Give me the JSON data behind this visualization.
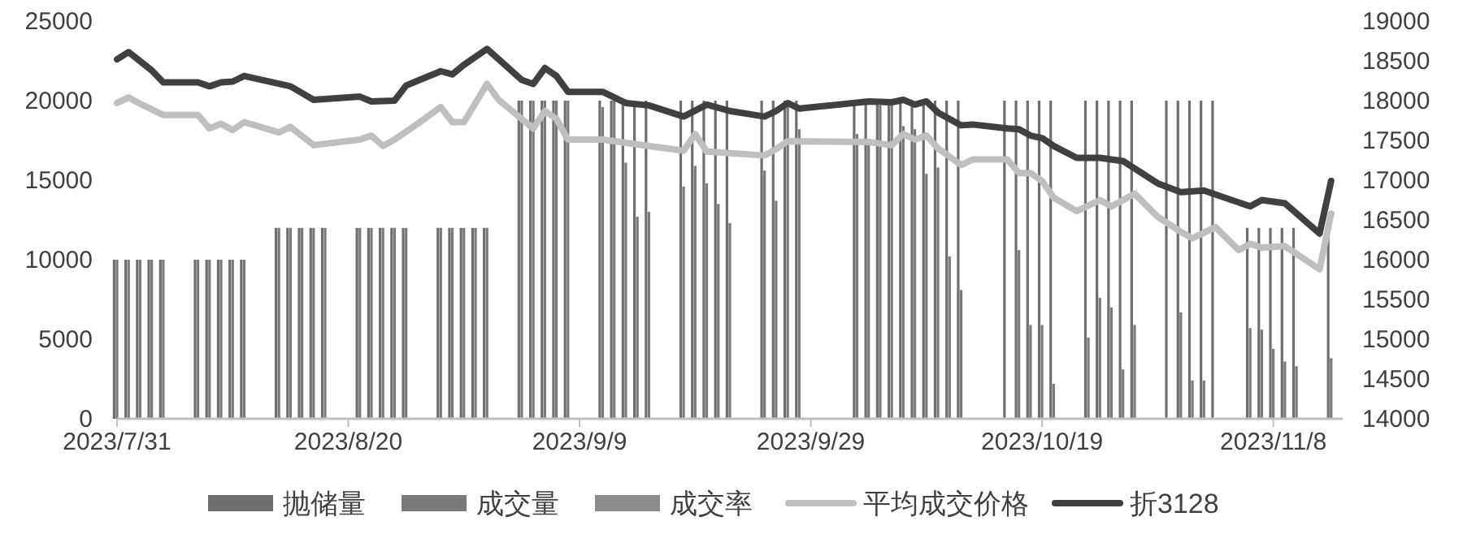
{
  "chart_data": {
    "type": "bar",
    "x": [
      "2023-07-31",
      "2023-08-01",
      "2023-08-02",
      "2023-08-03",
      "2023-08-04",
      "2023-08-07",
      "2023-08-08",
      "2023-08-09",
      "2023-08-10",
      "2023-08-11",
      "2023-08-14",
      "2023-08-15",
      "2023-08-16",
      "2023-08-17",
      "2023-08-18",
      "2023-08-21",
      "2023-08-22",
      "2023-08-23",
      "2023-08-24",
      "2023-08-25",
      "2023-08-28",
      "2023-08-29",
      "2023-08-30",
      "2023-08-31",
      "2023-09-01",
      "2023-09-04",
      "2023-09-05",
      "2023-09-06",
      "2023-09-07",
      "2023-09-08",
      "2023-09-11",
      "2023-09-12",
      "2023-09-13",
      "2023-09-14",
      "2023-09-15",
      "2023-09-18",
      "2023-09-19",
      "2023-09-20",
      "2023-09-21",
      "2023-09-22",
      "2023-09-25",
      "2023-09-26",
      "2023-09-27",
      "2023-09-28",
      "2023-10-03",
      "2023-10-04",
      "2023-10-05",
      "2023-10-06",
      "2023-10-07",
      "2023-10-08",
      "2023-10-09",
      "2023-10-10",
      "2023-10-11",
      "2023-10-12",
      "2023-10-16",
      "2023-10-17",
      "2023-10-18",
      "2023-10-19",
      "2023-10-20",
      "2023-10-23",
      "2023-10-24",
      "2023-10-25",
      "2023-10-26",
      "2023-10-27",
      "2023-10-30",
      "2023-10-31",
      "2023-11-01",
      "2023-11-02",
      "2023-11-03",
      "2023-11-06",
      "2023-11-07",
      "2023-11-08",
      "2023-11-09",
      "2023-11-10",
      "2023-11-13"
    ],
    "series": [
      {
        "name": "抛储量",
        "color": "#6e6e6e",
        "values": [
          10000,
          10000,
          10000,
          10000,
          10000,
          10000,
          10000,
          10000,
          10000,
          10000,
          12000,
          12000,
          12000,
          12000,
          12000,
          12000,
          12000,
          12000,
          12000,
          12000,
          12000,
          12000,
          12000,
          12000,
          12000,
          20000,
          20000,
          20000,
          20000,
          20000,
          20000,
          20000,
          20000,
          20000,
          20000,
          20000,
          20000,
          20000,
          20000,
          20000,
          20000,
          20000,
          20000,
          20000,
          20000,
          20000,
          20000,
          20000,
          20000,
          20000,
          20000,
          20000,
          20000,
          20000,
          20000,
          20000,
          20000,
          20000,
          20000,
          20000,
          20000,
          20000,
          20000,
          20000,
          20000,
          20000,
          20000,
          20000,
          20000,
          12000,
          12000,
          12000,
          12000,
          12000,
          12000
        ]
      },
      {
        "name": "成交量",
        "color": "#7a7a7a",
        "values": [
          10000,
          10000,
          10000,
          10000,
          10000,
          10000,
          10000,
          10000,
          10000,
          10000,
          12000,
          12000,
          12000,
          12000,
          12000,
          12000,
          12000,
          12000,
          12000,
          12000,
          12000,
          12000,
          12000,
          12000,
          12000,
          20000,
          20000,
          20000,
          20000,
          20000,
          19600,
          20000,
          16100,
          12700,
          13000,
          14600,
          15900,
          14800,
          13500,
          12300,
          15600,
          13700,
          19900,
          18200,
          17900,
          17600,
          19700,
          19700,
          18400,
          18200,
          15400,
          15800,
          10200,
          8100,
          null,
          10600,
          5900,
          5900,
          2200,
          5100,
          7600,
          7000,
          3100,
          5900,
          null,
          6700,
          2400,
          2400,
          null,
          5700,
          5600,
          4400,
          3600,
          3300,
          3800
        ]
      },
      {
        "name": "成交率",
        "color": "#8c8c8c",
        "values": [
          null,
          null,
          null,
          null,
          null,
          null,
          null,
          null,
          null,
          null,
          null,
          null,
          null,
          null,
          null,
          null,
          null,
          null,
          null,
          null,
          null,
          null,
          null,
          null,
          null,
          null,
          null,
          null,
          null,
          null,
          null,
          null,
          null,
          null,
          null,
          null,
          null,
          null,
          null,
          null,
          null,
          null,
          null,
          null,
          null,
          null,
          null,
          null,
          null,
          null,
          null,
          null,
          null,
          null,
          null,
          null,
          null,
          null,
          null,
          null,
          null,
          null,
          null,
          null,
          null,
          null,
          null,
          null,
          null,
          null,
          null,
          null,
          null,
          null,
          null
        ]
      },
      {
        "name": "平均成交价格",
        "type": "line",
        "axis": "y2",
        "color": "#bfbfbf",
        "x": [
          "2023-07-31",
          "2023-08-01",
          "2023-08-02",
          "2023-08-04",
          "2023-08-07",
          "2023-08-08",
          "2023-08-09",
          "2023-08-10",
          "2023-08-11",
          "2023-08-14",
          "2023-08-15",
          "2023-08-17",
          "2023-08-21",
          "2023-08-22",
          "2023-08-23",
          "2023-08-24",
          "2023-08-26",
          "2023-08-28",
          "2023-08-29",
          "2023-08-30",
          "2023-09-01",
          "2023-09-02",
          "2023-09-05",
          "2023-09-06",
          "2023-09-07",
          "2023-09-08",
          "2023-09-11",
          "2023-09-18",
          "2023-09-19",
          "2023-09-20",
          "2023-09-25",
          "2023-09-26",
          "2023-09-27",
          "2023-10-04",
          "2023-10-06",
          "2023-10-07",
          "2023-10-08",
          "2023-10-09",
          "2023-10-10",
          "2023-10-12",
          "2023-10-13",
          "2023-10-16",
          "2023-10-17",
          "2023-10-18",
          "2023-10-19",
          "2023-10-20",
          "2023-10-22",
          "2023-10-24",
          "2023-10-25",
          "2023-10-27",
          "2023-10-29",
          "2023-10-31",
          "2023-11-01",
          "2023-11-03",
          "2023-11-05",
          "2023-11-06",
          "2023-11-07",
          "2023-11-09",
          "2023-11-12",
          "2023-11-13"
        ],
        "values": [
          17970,
          18040,
          17960,
          17820,
          17820,
          17650,
          17710,
          17630,
          17730,
          17600,
          17670,
          17440,
          17510,
          17560,
          17430,
          17510,
          17710,
          17920,
          17730,
          17730,
          18210,
          18010,
          17650,
          17870,
          17770,
          17510,
          17510,
          17370,
          17580,
          17360,
          17310,
          17390,
          17490,
          17480,
          17440,
          17580,
          17510,
          17560,
          17400,
          17190,
          17260,
          17260,
          17090,
          17090,
          16990,
          16780,
          16610,
          16750,
          16670,
          16830,
          16540,
          16350,
          16270,
          16410,
          16120,
          16200,
          16150,
          16170,
          15880,
          16580
        ]
      },
      {
        "name": "折3128",
        "type": "line",
        "axis": "y2",
        "color": "#404040",
        "x": [
          "2023-07-31",
          "2023-08-01",
          "2023-08-03",
          "2023-08-04",
          "2023-08-07",
          "2023-08-08",
          "2023-08-09",
          "2023-08-10",
          "2023-08-11",
          "2023-08-15",
          "2023-08-17",
          "2023-08-21",
          "2023-08-22",
          "2023-08-24",
          "2023-08-25",
          "2023-08-28",
          "2023-08-29",
          "2023-08-30",
          "2023-09-01",
          "2023-09-02",
          "2023-09-04",
          "2023-09-05",
          "2023-09-06",
          "2023-09-07",
          "2023-09-08",
          "2023-09-11",
          "2023-09-13",
          "2023-09-15",
          "2023-09-18",
          "2023-09-20",
          "2023-09-22",
          "2023-09-25",
          "2023-09-26",
          "2023-09-27",
          "2023-09-28",
          "2023-10-04",
          "2023-10-06",
          "2023-10-07",
          "2023-10-08",
          "2023-10-09",
          "2023-10-10",
          "2023-10-12",
          "2023-10-13",
          "2023-10-16",
          "2023-10-17",
          "2023-10-18",
          "2023-10-19",
          "2023-10-20",
          "2023-10-22",
          "2023-10-24",
          "2023-10-26",
          "2023-10-29",
          "2023-10-31",
          "2023-11-02",
          "2023-11-06",
          "2023-11-07",
          "2023-11-09",
          "2023-11-12",
          "2023-11-13"
        ],
        "values": [
          18520,
          18610,
          18380,
          18230,
          18230,
          18180,
          18230,
          18240,
          18310,
          18180,
          18010,
          18050,
          17990,
          18000,
          18190,
          18370,
          18330,
          18450,
          18650,
          18520,
          18260,
          18210,
          18410,
          18310,
          18110,
          18110,
          17970,
          17940,
          17800,
          17950,
          17870,
          17800,
          17870,
          17970,
          17900,
          17990,
          17980,
          18010,
          17950,
          17990,
          17850,
          17690,
          17700,
          17650,
          17640,
          17560,
          17530,
          17430,
          17280,
          17280,
          17240,
          16960,
          16850,
          16870,
          16670,
          16750,
          16710,
          16330,
          16990
        ]
      }
    ],
    "xlim": [
      "2023-07-31",
      "2023-11-14"
    ],
    "xticks": [
      {
        "value": "2023-07-31",
        "label": "2023/7/31"
      },
      {
        "value": "2023-08-20",
        "label": "2023/8/20"
      },
      {
        "value": "2023-09-09",
        "label": "2023/9/9"
      },
      {
        "value": "2023-09-29",
        "label": "2023/9/29"
      },
      {
        "value": "2023-10-19",
        "label": "2023/10/19"
      },
      {
        "value": "2023-11-08",
        "label": "2023/11/8"
      }
    ],
    "ylim": [
      0,
      25000
    ],
    "yticks": [
      0,
      5000,
      10000,
      15000,
      20000,
      25000
    ],
    "y2lim": [
      14000,
      19000
    ],
    "y2ticks": [
      14000,
      14500,
      15000,
      15500,
      16000,
      16500,
      17000,
      17500,
      18000,
      18500,
      19000
    ],
    "legend": "bottom"
  }
}
